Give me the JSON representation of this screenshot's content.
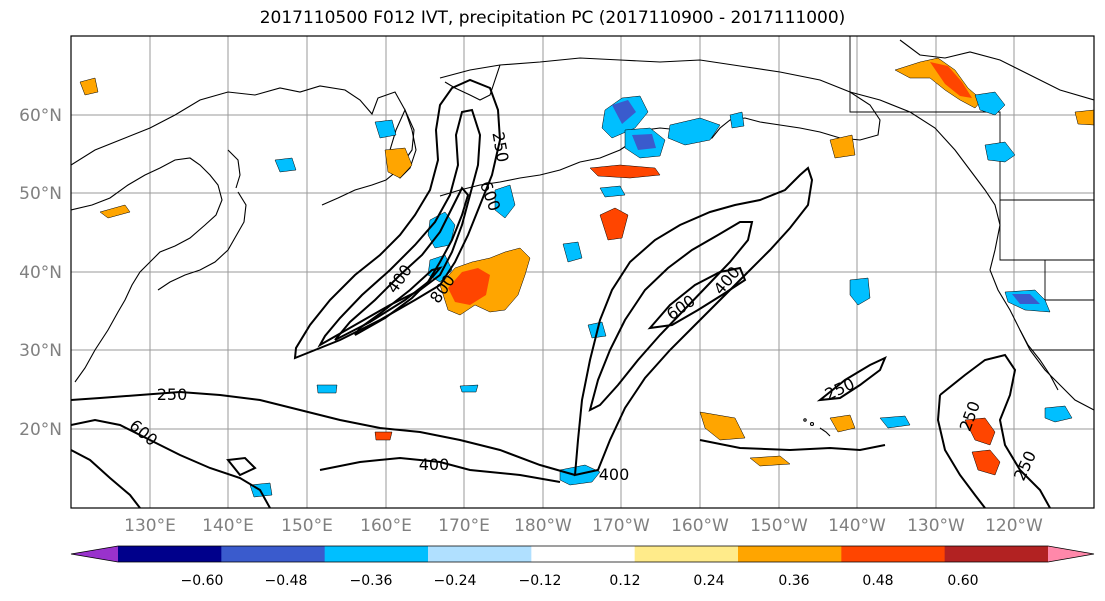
{
  "title": "2017110500 F012 IVT, precipitation PC (2017110900 - 2017111000)",
  "lat_labels": [
    "60°N",
    "50°N",
    "40°N",
    "30°N",
    "20°N"
  ],
  "lon_labels": [
    "130°E",
    "140°E",
    "150°E",
    "160°E",
    "170°E",
    "180°W",
    "170°W",
    "160°W",
    "150°W",
    "140°W",
    "130°W",
    "120°W"
  ],
  "contour_labels": [
    "250",
    "600",
    "250",
    "600",
    "400",
    "400",
    "800",
    "600",
    "400",
    "250",
    "250",
    "250",
    "400"
  ],
  "colorbar": {
    "ticks": [
      "−0.60",
      "−0.48",
      "−0.36",
      "−0.24",
      "−0.12",
      "0.12",
      "0.24",
      "0.36",
      "0.48",
      "0.60"
    ],
    "colors": [
      "#9932cc",
      "#00008b",
      "#3a5bcd",
      "#00bfff",
      "#b0e0ff",
      "#ffffff",
      "#ffeb8a",
      "#ffa500",
      "#ff4500",
      "#b22222",
      "#ff88aa"
    ]
  }
}
